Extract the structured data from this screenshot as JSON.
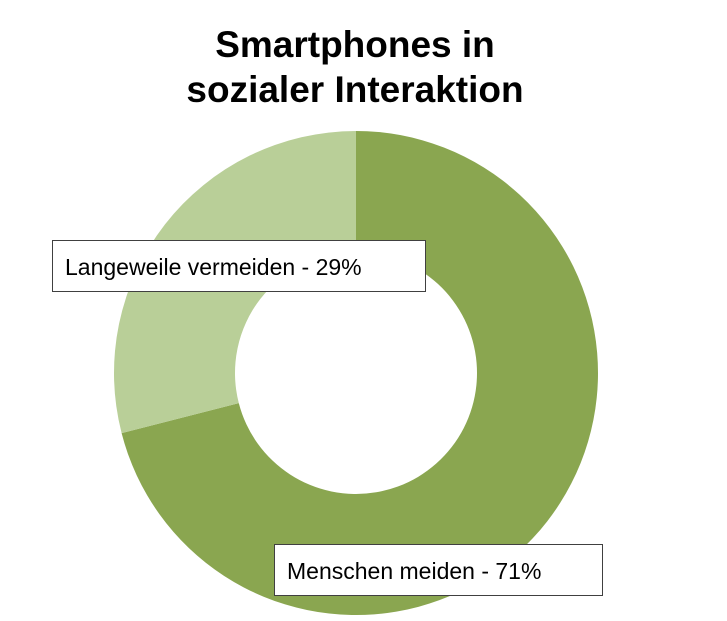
{
  "chart_data": {
    "type": "pie",
    "variant": "donut",
    "title_lines": [
      "Smartphones in",
      "sozialer Interaktion"
    ],
    "slices": [
      {
        "label": "Menschen meiden",
        "value": 71,
        "color": "#8aa650",
        "label_text": "Menschen meiden - 71%"
      },
      {
        "label": "Langeweile vermeiden",
        "value": 29,
        "color": "#b9cf98",
        "label_text": "Langeweile vermeiden - 29%"
      }
    ],
    "legend": "none",
    "data_labels": "boxed"
  }
}
